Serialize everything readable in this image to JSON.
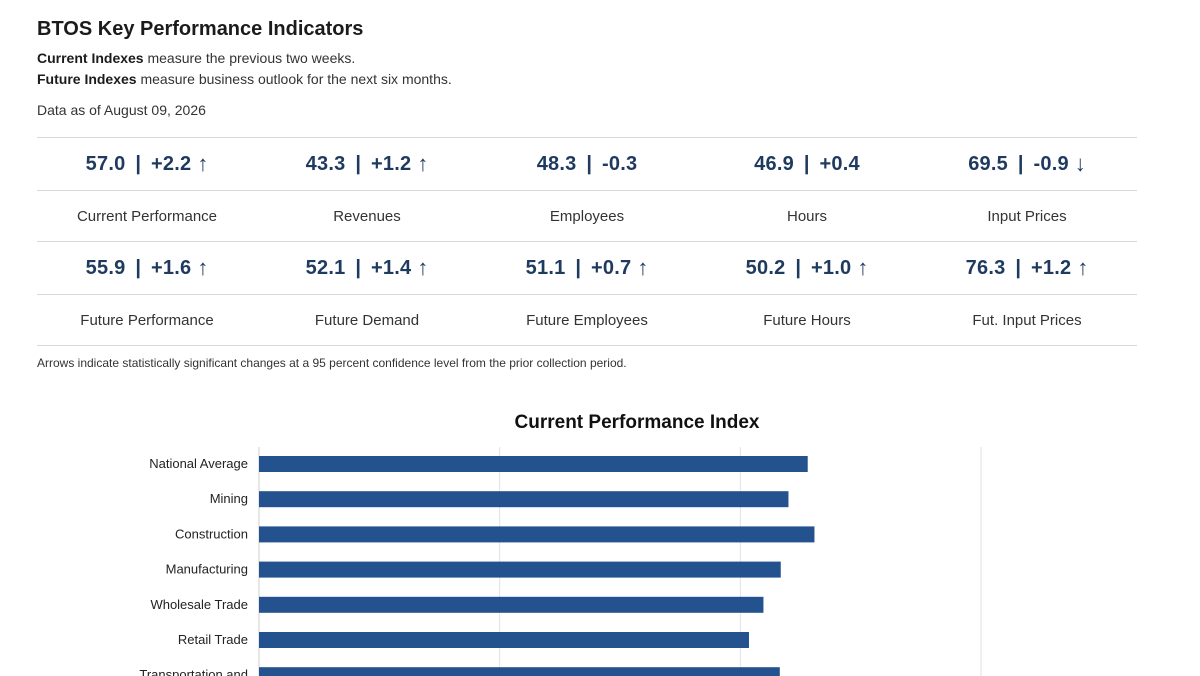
{
  "header": {
    "title": "BTOS Key Performance Indicators",
    "desc1_bold": "Current Indexes",
    "desc1_text": " measure the previous two weeks.",
    "desc2_bold": "Future Indexes",
    "desc2_text": " measure business outlook for the next six months.",
    "date": "Data as of August 09, 2026"
  },
  "kpis": {
    "current": [
      {
        "value": "57.0",
        "change": "+2.2",
        "arrow": "↑",
        "label": "Current Performance"
      },
      {
        "value": "43.3",
        "change": "+1.2",
        "arrow": "↑",
        "label": "Revenues"
      },
      {
        "value": "48.3",
        "change": "-0.3",
        "arrow": "",
        "label": "Employees"
      },
      {
        "value": "46.9",
        "change": "+0.4",
        "arrow": "",
        "label": "Hours"
      },
      {
        "value": "69.5",
        "change": "-0.9",
        "arrow": "↓",
        "label": "Input Prices"
      }
    ],
    "future": [
      {
        "value": "55.9",
        "change": "+1.6",
        "arrow": "↑",
        "label": "Future Performance"
      },
      {
        "value": "52.1",
        "change": "+1.4",
        "arrow": "↑",
        "label": "Future Demand"
      },
      {
        "value": "51.1",
        "change": "+0.7",
        "arrow": "↑",
        "label": "Future Employees"
      },
      {
        "value": "50.2",
        "change": "+1.0",
        "arrow": "↑",
        "label": "Future Hours"
      },
      {
        "value": "76.3",
        "change": "+1.2",
        "arrow": "↑",
        "label": "Fut. Input Prices"
      }
    ],
    "separator": "|"
  },
  "footnote": "Arrows indicate statistically significant changes at a 95 percent confidence level from the prior collection period.",
  "chart_data": {
    "type": "bar",
    "orientation": "horizontal",
    "title": "Current Performance Index",
    "categories": [
      "National Average",
      "Mining",
      "Construction",
      "Manufacturing",
      "Wholesale Trade",
      "Retail Trade",
      "Transportation and"
    ],
    "values": [
      57.0,
      55.0,
      57.7,
      54.2,
      52.4,
      50.9,
      54.1
    ],
    "xlim": [
      0,
      75
    ],
    "grid": true,
    "bar_color": "#23528f",
    "grid_color": "#e2e2e2"
  }
}
